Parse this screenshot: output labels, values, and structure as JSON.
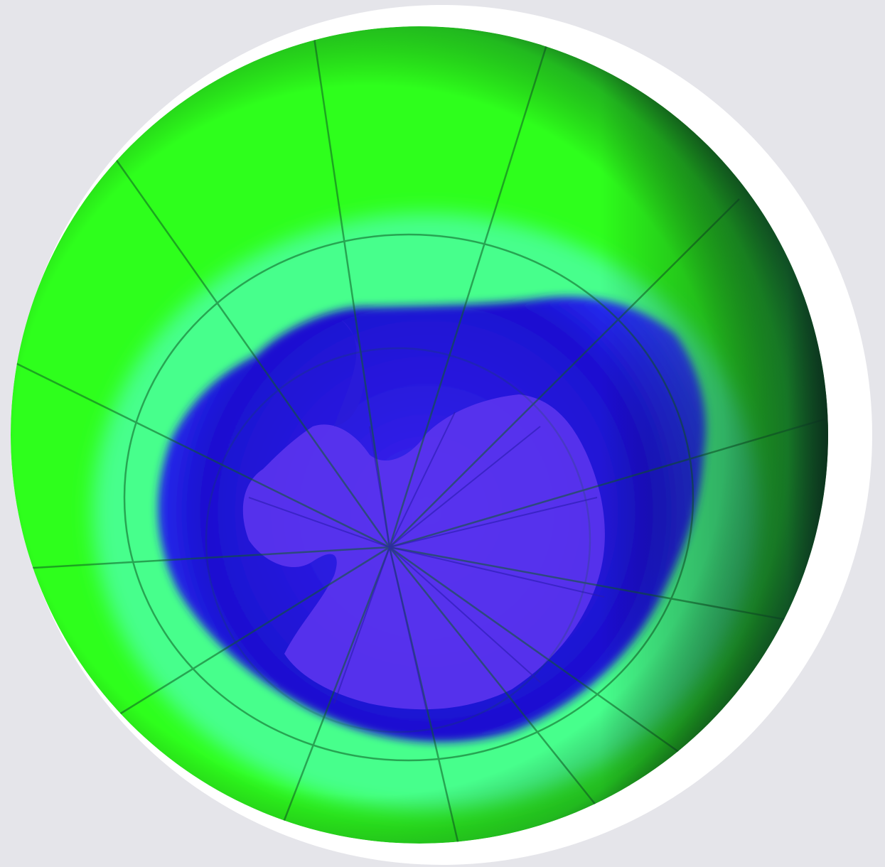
{
  "image": {
    "subject": "ozone-hole-over-antarctica",
    "colors": {
      "background": "#e5e5ea",
      "halo": "#ffffff",
      "ozone_high": "#2bff12",
      "ozone_mid": "#46ff96",
      "hole_edge": "#1111cc",
      "hole_core": "#4032ff",
      "antarctica": "#5a35ee",
      "limb_shadow": "#14472e",
      "graticule": "#0e5c24"
    }
  }
}
